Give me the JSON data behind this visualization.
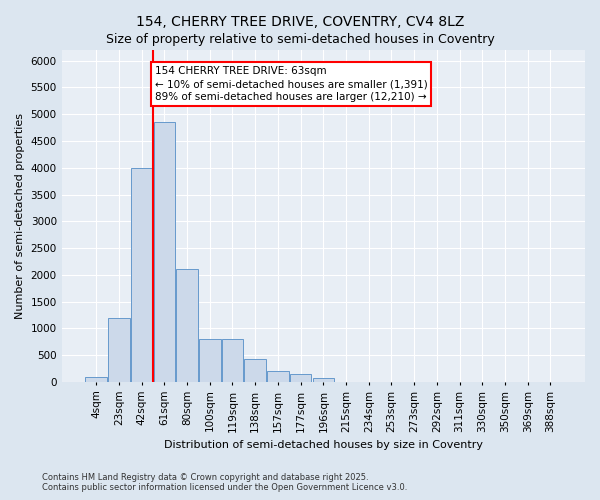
{
  "title": "154, CHERRY TREE DRIVE, COVENTRY, CV4 8LZ",
  "subtitle": "Size of property relative to semi-detached houses in Coventry",
  "xlabel": "Distribution of semi-detached houses by size in Coventry",
  "ylabel": "Number of semi-detached properties",
  "categories": [
    "4sqm",
    "23sqm",
    "42sqm",
    "61sqm",
    "80sqm",
    "100sqm",
    "119sqm",
    "138sqm",
    "157sqm",
    "177sqm",
    "196sqm",
    "215sqm",
    "234sqm",
    "253sqm",
    "273sqm",
    "292sqm",
    "311sqm",
    "330sqm",
    "350sqm",
    "369sqm",
    "388sqm"
  ],
  "bar_heights": [
    100,
    1200,
    4000,
    4850,
    2100,
    800,
    800,
    430,
    200,
    150,
    80,
    0,
    0,
    0,
    0,
    0,
    0,
    0,
    0,
    0,
    0
  ],
  "bar_color": "#ccd9ea",
  "bar_edge_color": "#6699cc",
  "red_line_label": "154 CHERRY TREE DRIVE: 63sqm",
  "annotation_line1": "← 10% of semi-detached houses are smaller (1,391)",
  "annotation_line2": "89% of semi-detached houses are larger (12,210) →",
  "ylim": [
    0,
    6200
  ],
  "yticks": [
    0,
    500,
    1000,
    1500,
    2000,
    2500,
    3000,
    3500,
    4000,
    4500,
    5000,
    5500,
    6000
  ],
  "footer1": "Contains HM Land Registry data © Crown copyright and database right 2025.",
  "footer2": "Contains public sector information licensed under the Open Government Licence v3.0.",
  "bg_color": "#dce6f0",
  "plot_bg_color": "#e8eef5",
  "grid_color": "#ffffff",
  "title_fontsize": 10,
  "subtitle_fontsize": 9,
  "axis_label_fontsize": 8,
  "tick_fontsize": 7.5,
  "footer_fontsize": 6,
  "annot_fontsize": 7.5,
  "red_line_index": 2.5
}
